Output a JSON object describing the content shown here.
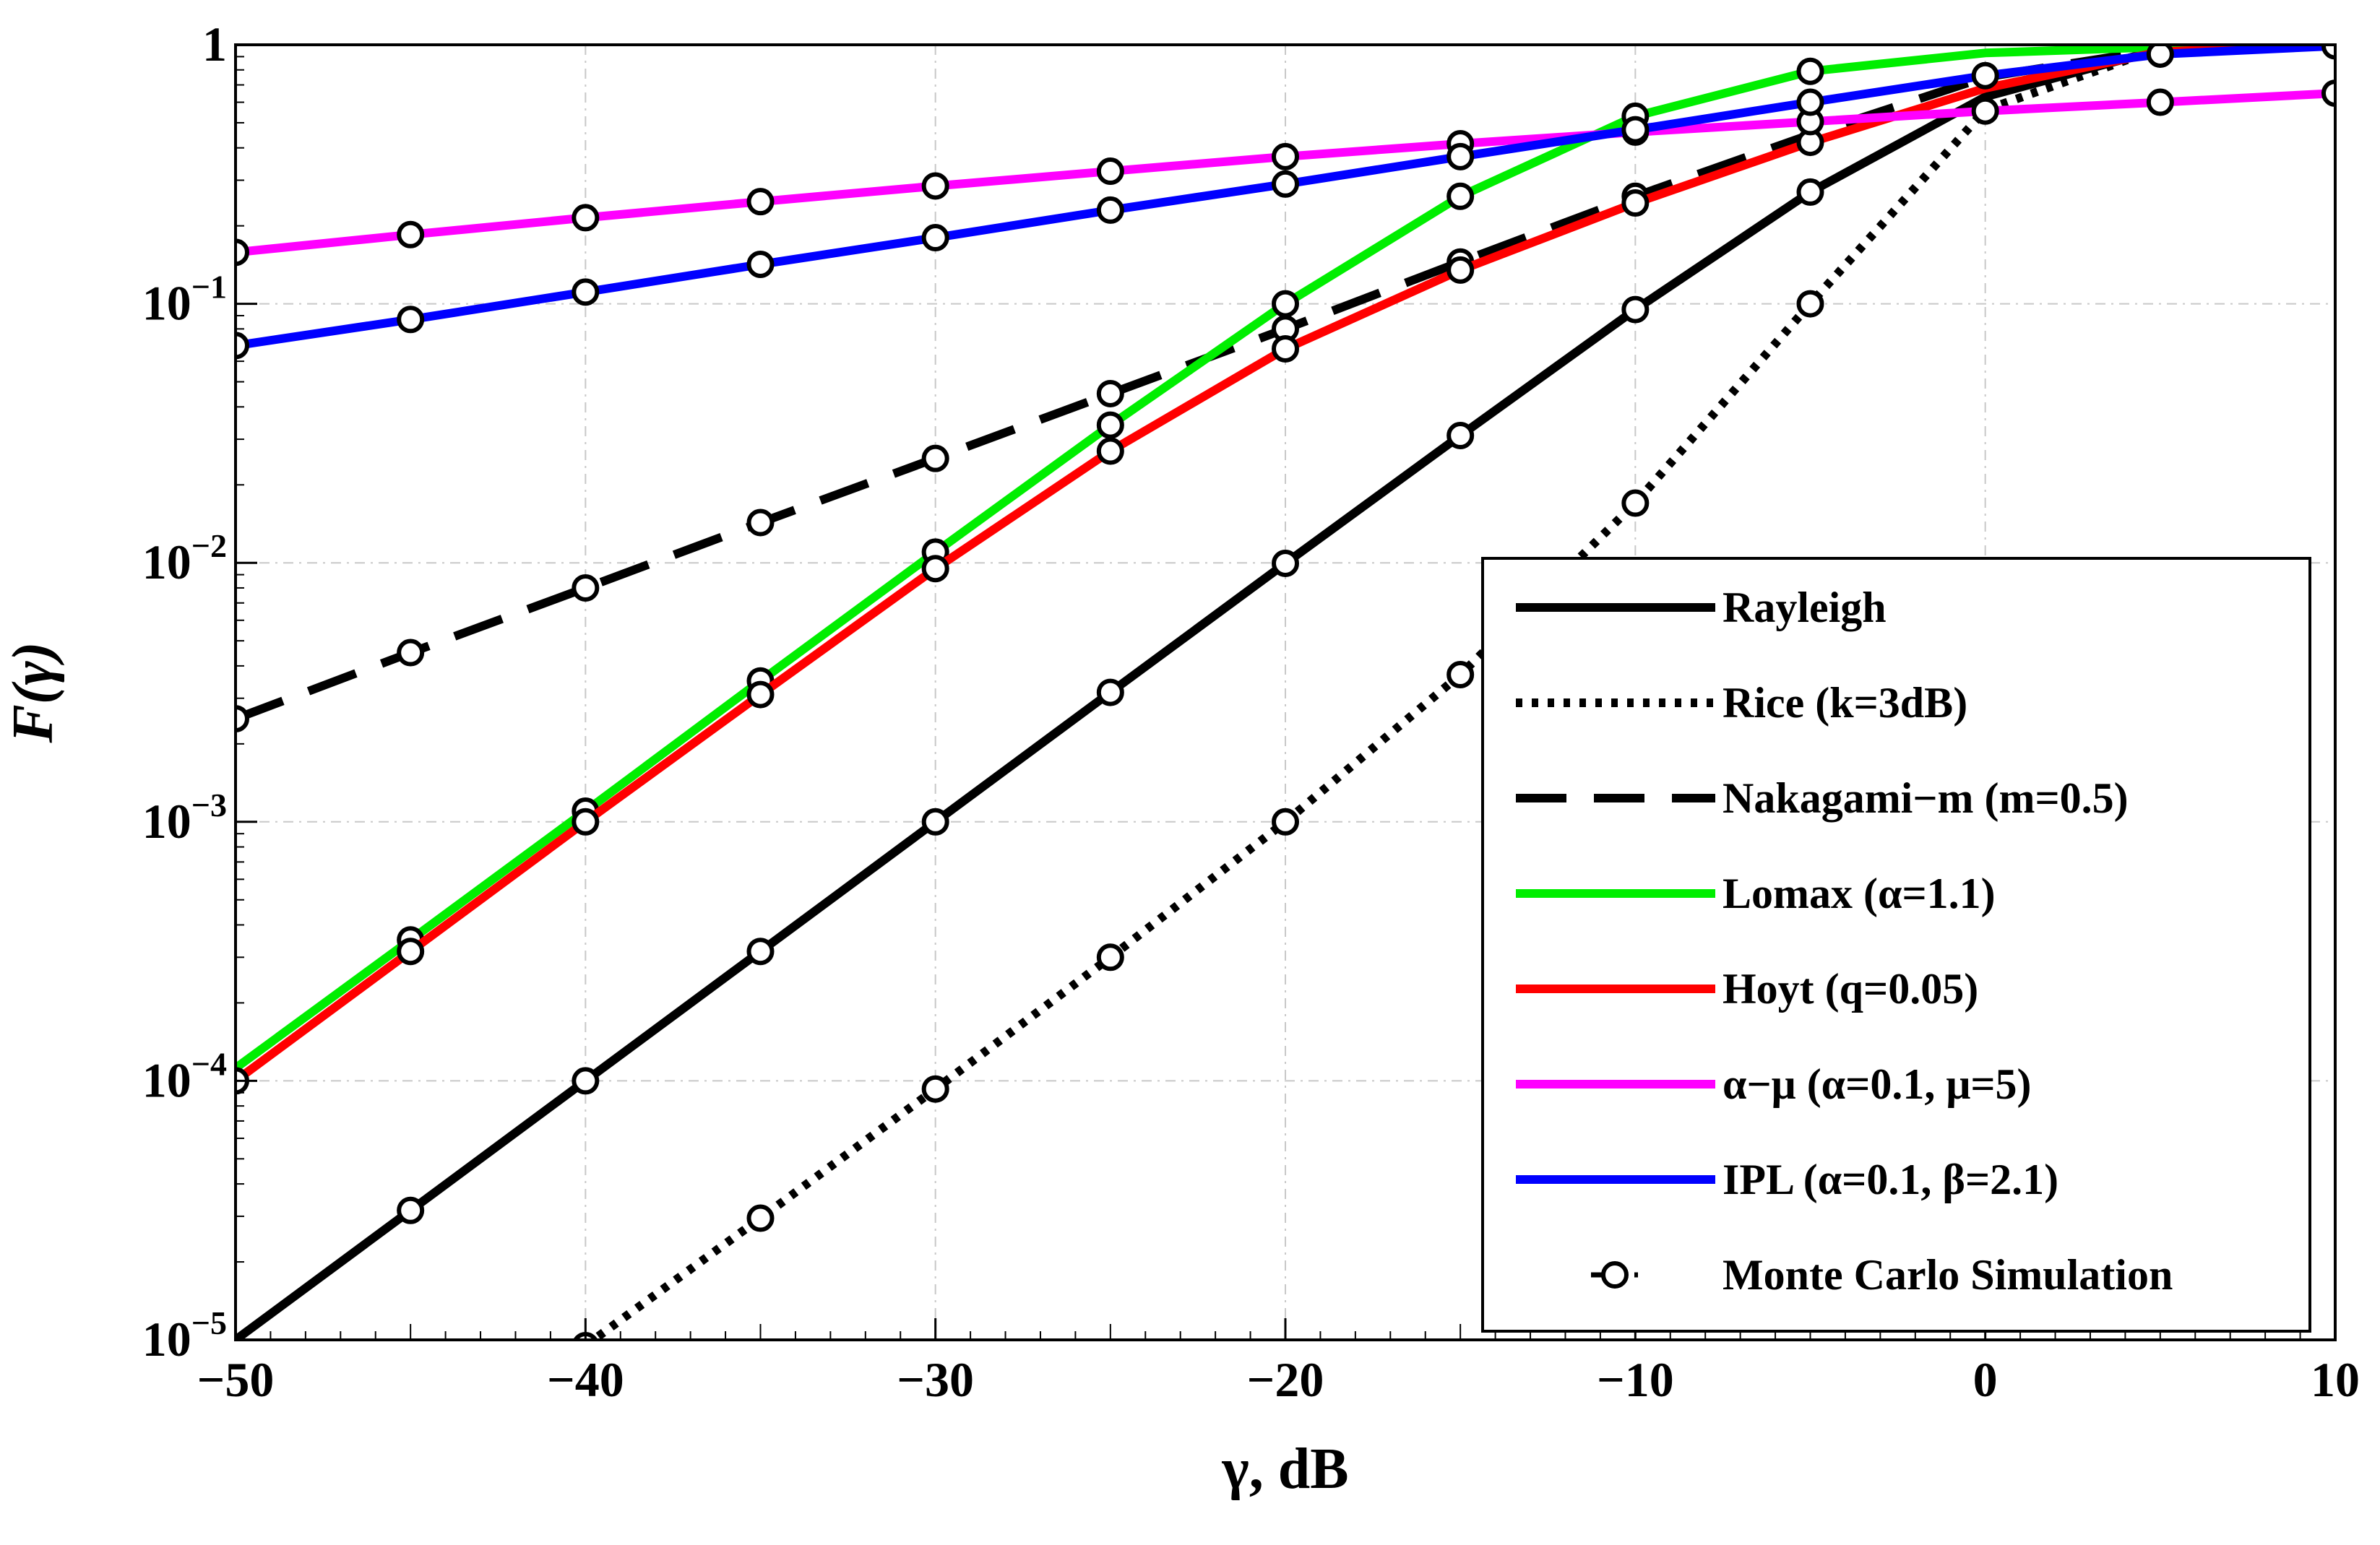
{
  "chart_data": {
    "type": "line",
    "title": "",
    "xlabel": "γ, dB",
    "ylabel": "F(γ)",
    "xscale": "linear",
    "yscale": "log",
    "xlim": [
      -50,
      10
    ],
    "ylim": [
      1e-05,
      1
    ],
    "grid": true,
    "legend_position": "bottom-right",
    "xticks": [
      {
        "value": -50,
        "label": "−50"
      },
      {
        "value": -40,
        "label": "−40"
      },
      {
        "value": -30,
        "label": "−30"
      },
      {
        "value": -20,
        "label": "−20"
      },
      {
        "value": -10,
        "label": "−10"
      },
      {
        "value": 0,
        "label": "0"
      },
      {
        "value": 10,
        "label": "10"
      }
    ],
    "yticks": [
      {
        "value": 1,
        "base": "1",
        "exp": ""
      },
      {
        "value": 0.1,
        "base": "10",
        "exp": "−1"
      },
      {
        "value": 0.01,
        "base": "10",
        "exp": "−2"
      },
      {
        "value": 0.001,
        "base": "10",
        "exp": "−3"
      },
      {
        "value": 0.0001,
        "base": "10",
        "exp": "−4"
      },
      {
        "value": 1e-05,
        "base": "10",
        "exp": "−5"
      }
    ],
    "series": [
      {
        "name": "Rayleigh",
        "color": "#000000",
        "dash": "solid",
        "x": [
          -50,
          -45,
          -40,
          -35,
          -30,
          -25,
          -20,
          -15,
          -10,
          -5,
          0,
          5,
          10
        ],
        "values": [
          1e-05,
          3.16e-05,
          0.0001,
          0.000316,
          0.001,
          0.00316,
          0.00995,
          0.031,
          0.095,
          0.27,
          0.63,
          0.96,
          1.0
        ],
        "markers": [
          -45,
          -40,
          -35,
          -30,
          -25,
          -20,
          -15,
          -10,
          -5
        ]
      },
      {
        "name": "Rice (k=3dB)",
        "color": "#000000",
        "dash": "dotted",
        "x": [
          -40,
          -35,
          -30,
          -25,
          -20,
          -15,
          -10,
          -5,
          0,
          5,
          10
        ],
        "values": [
          9.5e-06,
          2.95e-05,
          9.3e-05,
          0.0003,
          0.001,
          0.0037,
          0.017,
          0.1,
          0.56,
          0.97,
          1.0
        ],
        "markers": [
          -40,
          -35,
          -30,
          -25,
          -20,
          -15,
          -10,
          -5
        ]
      },
      {
        "name": "Nakagami−m (m=0.5)",
        "color": "#000000",
        "dash": "dashed",
        "x": [
          -50,
          -45,
          -40,
          -35,
          -30,
          -25,
          -20,
          -15,
          -10,
          -5,
          0,
          5,
          10
        ],
        "values": [
          0.0025,
          0.0045,
          0.008,
          0.0143,
          0.0253,
          0.045,
          0.08,
          0.145,
          0.26,
          0.45,
          0.75,
          0.96,
          1.0
        ],
        "markers": [
          -50,
          -45,
          -40,
          -35,
          -30,
          -25,
          -20,
          -15,
          -10
        ]
      },
      {
        "name": "Lomax (α=1.1)",
        "color": "#00ee00",
        "dash": "solid",
        "x": [
          -50,
          -45,
          -40,
          -35,
          -30,
          -25,
          -20,
          -15,
          -10,
          -5,
          0,
          5,
          10
        ],
        "values": [
          0.000112,
          0.00035,
          0.0011,
          0.0035,
          0.011,
          0.034,
          0.1,
          0.26,
          0.53,
          0.79,
          0.93,
          0.98,
          0.995
        ],
        "markers": [
          -45,
          -40,
          -35,
          -30,
          -25,
          -20,
          -15,
          -10,
          -5
        ]
      },
      {
        "name": "Hoyt (q=0.05)",
        "color": "#ff0000",
        "dash": "solid",
        "x": [
          -50,
          -45,
          -40,
          -35,
          -30,
          -25,
          -20,
          -15,
          -10,
          -5,
          0,
          5,
          10
        ],
        "values": [
          0.0001,
          0.000316,
          0.001,
          0.0031,
          0.0095,
          0.027,
          0.067,
          0.135,
          0.245,
          0.42,
          0.68,
          0.94,
          1.0
        ],
        "markers": [
          -50,
          -45,
          -40,
          -35,
          -30,
          -25,
          -20,
          -15,
          -10,
          -5
        ]
      },
      {
        "name": "α−μ (α=0.1, μ=5)",
        "color": "#ff00ff",
        "dash": "solid",
        "x": [
          -50,
          -45,
          -40,
          -35,
          -30,
          -25,
          -20,
          -15,
          -10,
          -5,
          0,
          5,
          10
        ],
        "values": [
          0.158,
          0.185,
          0.215,
          0.248,
          0.285,
          0.325,
          0.37,
          0.415,
          0.46,
          0.505,
          0.555,
          0.6,
          0.65
        ],
        "markers": [
          -50,
          -45,
          -40,
          -35,
          -30,
          -25,
          -20,
          -15,
          -10,
          -5,
          0,
          5,
          10
        ]
      },
      {
        "name": "IPL (α=0.1, β=2.1)",
        "color": "#0000ff",
        "dash": "solid",
        "x": [
          -50,
          -45,
          -40,
          -35,
          -30,
          -25,
          -20,
          -15,
          -10,
          -5,
          0,
          5,
          10
        ],
        "values": [
          0.069,
          0.087,
          0.111,
          0.142,
          0.18,
          0.23,
          0.29,
          0.37,
          0.47,
          0.6,
          0.76,
          0.92,
          0.99
        ],
        "markers": [
          -50,
          -45,
          -40,
          -35,
          -30,
          -25,
          -20,
          -15,
          -10,
          -5,
          0,
          5,
          10
        ]
      }
    ],
    "legend": [
      {
        "label": "Rayleigh",
        "color": "#000000",
        "dash": "solid",
        "marker": false
      },
      {
        "label": "Rice (k=3dB)",
        "color": "#000000",
        "dash": "dotted",
        "marker": false
      },
      {
        "label": "Nakagami−m (m=0.5)",
        "color": "#000000",
        "dash": "dashed",
        "marker": false
      },
      {
        "label": "Lomax (α=1.1)",
        "color": "#00ee00",
        "dash": "solid",
        "marker": false
      },
      {
        "label": "Hoyt (q=0.05)",
        "color": "#ff0000",
        "dash": "solid",
        "marker": false
      },
      {
        "label": "α−μ (α=0.1, μ=5)",
        "color": "#ff00ff",
        "dash": "solid",
        "marker": false
      },
      {
        "label": "IPL (α=0.1, β=2.1)",
        "color": "#0000ff",
        "dash": "solid",
        "marker": false
      },
      {
        "label": "Monte Carlo Simulation",
        "color": "#000000",
        "dash": "none",
        "marker": true
      }
    ]
  }
}
